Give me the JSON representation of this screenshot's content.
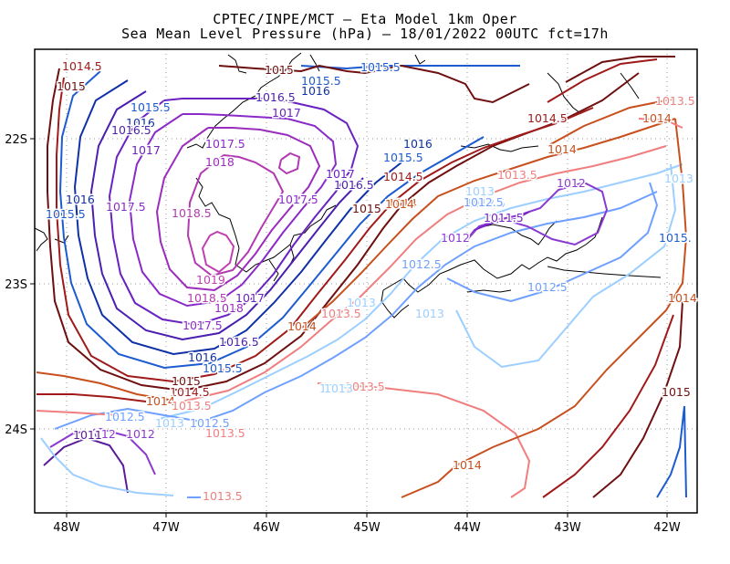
{
  "title": {
    "line1": "CPTEC/INPE/MCT –  Eta Model 1km Oper",
    "line2": "Sea Mean Level Pressure (hPa) – 18/01/2022 00UTC fct=17h"
  },
  "axes": {
    "x_ticks": [
      "48W",
      "47W",
      "46W",
      "45W",
      "44W",
      "43W",
      "42W"
    ],
    "y_ticks": [
      "22S",
      "23S",
      "24S"
    ]
  },
  "contour_levels": [
    {
      "value": "1011",
      "color": "#5a1a9a"
    },
    {
      "value": "1011.5",
      "color": "#7a22c8"
    },
    {
      "value": "1012",
      "color": "#8a3ad0"
    },
    {
      "value": "1012.5",
      "color": "#6fa0ff"
    },
    {
      "value": "1013",
      "color": "#9ccfff"
    },
    {
      "value": "1013.5",
      "color": "#f07e7e"
    },
    {
      "value": "1014",
      "color": "#c8501e"
    },
    {
      "value": "1014.5",
      "color": "#a01a1a"
    },
    {
      "value": "1015",
      "color": "#6e0f10"
    },
    {
      "value": "1015.5",
      "color": "#1d5bd0"
    },
    {
      "value": "1016",
      "color": "#1030a8"
    },
    {
      "value": "1016.5",
      "color": "#4a1fb0"
    },
    {
      "value": "1017",
      "color": "#6a22c0"
    },
    {
      "value": "1017.5",
      "color": "#8a2ac8"
    },
    {
      "value": "1018",
      "color": "#9b2dbc"
    },
    {
      "value": "1018.5",
      "color": "#b23ab0"
    },
    {
      "value": "1019",
      "color": "#c040b0"
    }
  ],
  "contour_labels": [
    {
      "text": "1014.5",
      "color": "#a01a1a"
    },
    {
      "text": "1015",
      "color": "#6e0f10"
    },
    {
      "text": "1015",
      "color": "#6e0f10"
    },
    {
      "text": "1015.5",
      "color": "#1d5bd0"
    },
    {
      "text": "1015.5",
      "color": "#1d5bd0"
    },
    {
      "text": "1016",
      "color": "#1030a8"
    },
    {
      "text": "1016.5",
      "color": "#4a1fb0"
    },
    {
      "text": "1017",
      "color": "#6a22c0"
    },
    {
      "text": "1015.5",
      "color": "#1d5bd0"
    },
    {
      "text": "1016",
      "color": "#1030a8"
    },
    {
      "text": "1016.5",
      "color": "#4a1fb0"
    },
    {
      "text": "1017",
      "color": "#6a22c0"
    },
    {
      "text": "1017.5",
      "color": "#8a2ac8"
    },
    {
      "text": "1018",
      "color": "#9b2dbc"
    },
    {
      "text": "1016",
      "color": "#1030a8"
    },
    {
      "text": "1015.5",
      "color": "#1d5bd0"
    },
    {
      "text": "1017",
      "color": "#6a22c0"
    },
    {
      "text": "1016.5",
      "color": "#4a1fb0"
    },
    {
      "text": "1014.5",
      "color": "#a01a1a"
    },
    {
      "text": "1015",
      "color": "#6e0f10"
    },
    {
      "text": "1014",
      "color": "#c8501e"
    },
    {
      "text": "1017.5",
      "color": "#8a2ac8"
    },
    {
      "text": "1016",
      "color": "#1030a8"
    },
    {
      "text": "1015.5",
      "color": "#1d5bd0"
    },
    {
      "text": "1017.5",
      "color": "#8a2ac8"
    },
    {
      "text": "1018.5",
      "color": "#b23ab0"
    },
    {
      "text": "1019",
      "color": "#c040b0"
    },
    {
      "text": "1018.5",
      "color": "#b23ab0"
    },
    {
      "text": "1017",
      "color": "#6a22c0"
    },
    {
      "text": "1018",
      "color": "#9b2dbc"
    },
    {
      "text": "1017.5",
      "color": "#8a2ac8"
    },
    {
      "text": "1016.5",
      "color": "#4a1fb0"
    },
    {
      "text": "1016",
      "color": "#1030a8"
    },
    {
      "text": "1015.5",
      "color": "#1d5bd0"
    },
    {
      "text": "1015",
      "color": "#6e0f10"
    },
    {
      "text": "1014.5",
      "color": "#a01a1a"
    },
    {
      "text": "1014",
      "color": "#c8501e"
    },
    {
      "text": "1013.5",
      "color": "#f07e7e"
    },
    {
      "text": "1014",
      "color": "#c8501e"
    },
    {
      "text": "1013.5",
      "color": "#f07e7e"
    },
    {
      "text": "1013",
      "color": "#9ccfff"
    },
    {
      "text": "1013",
      "color": "#9ccfff"
    },
    {
      "text": "1013",
      "color": "#9ccfff"
    },
    {
      "text": "1013.5",
      "color": "#f07e7e"
    },
    {
      "text": "1013",
      "color": "#9ccfff"
    },
    {
      "text": "1012.5",
      "color": "#6fa0ff"
    },
    {
      "text": "1012",
      "color": "#8a3ad0"
    },
    {
      "text": "1011",
      "color": "#5a1a9a"
    },
    {
      "text": "1012",
      "color": "#8a3ad0"
    },
    {
      "text": "1013",
      "color": "#9ccfff"
    },
    {
      "text": "1012.5",
      "color": "#6fa0ff"
    },
    {
      "text": "1013.5",
      "color": "#f07e7e"
    },
    {
      "text": "1013.5",
      "color": "#f07e7e"
    },
    {
      "text": "1015",
      "color": "#6e0f10"
    },
    {
      "text": "1014.5",
      "color": "#a01a1a"
    },
    {
      "text": "1014",
      "color": "#c8501e"
    },
    {
      "text": "1013.5",
      "color": "#f07e7e"
    },
    {
      "text": "1013",
      "color": "#9ccfff"
    },
    {
      "text": "1012.5",
      "color": "#6fa0ff"
    },
    {
      "text": "1012",
      "color": "#8a3ad0"
    },
    {
      "text": "1012.5",
      "color": "#6fa0ff"
    },
    {
      "text": "1011.5",
      "color": "#7a22c8"
    },
    {
      "text": "1012",
      "color": "#8a3ad0"
    },
    {
      "text": "1012.5",
      "color": "#6fa0ff"
    },
    {
      "text": "1012.5",
      "color": "#6fa0ff"
    },
    {
      "text": "1014",
      "color": "#c8501e"
    },
    {
      "text": "1014.5",
      "color": "#a01a1a"
    },
    {
      "text": "1014",
      "color": "#c8501e"
    },
    {
      "text": "1013.5",
      "color": "#f07e7e"
    },
    {
      "text": "1013",
      "color": "#9ccfff"
    },
    {
      "text": "1014",
      "color": "#c8501e"
    },
    {
      "text": "1015",
      "color": "#6e0f10"
    },
    {
      "text": "1015.",
      "color": "#1d5bd0"
    },
    {
      "text": "1014",
      "color": "#c8501e"
    },
    {
      "text": "1013.5",
      "color": "#f07e7e"
    }
  ]
}
